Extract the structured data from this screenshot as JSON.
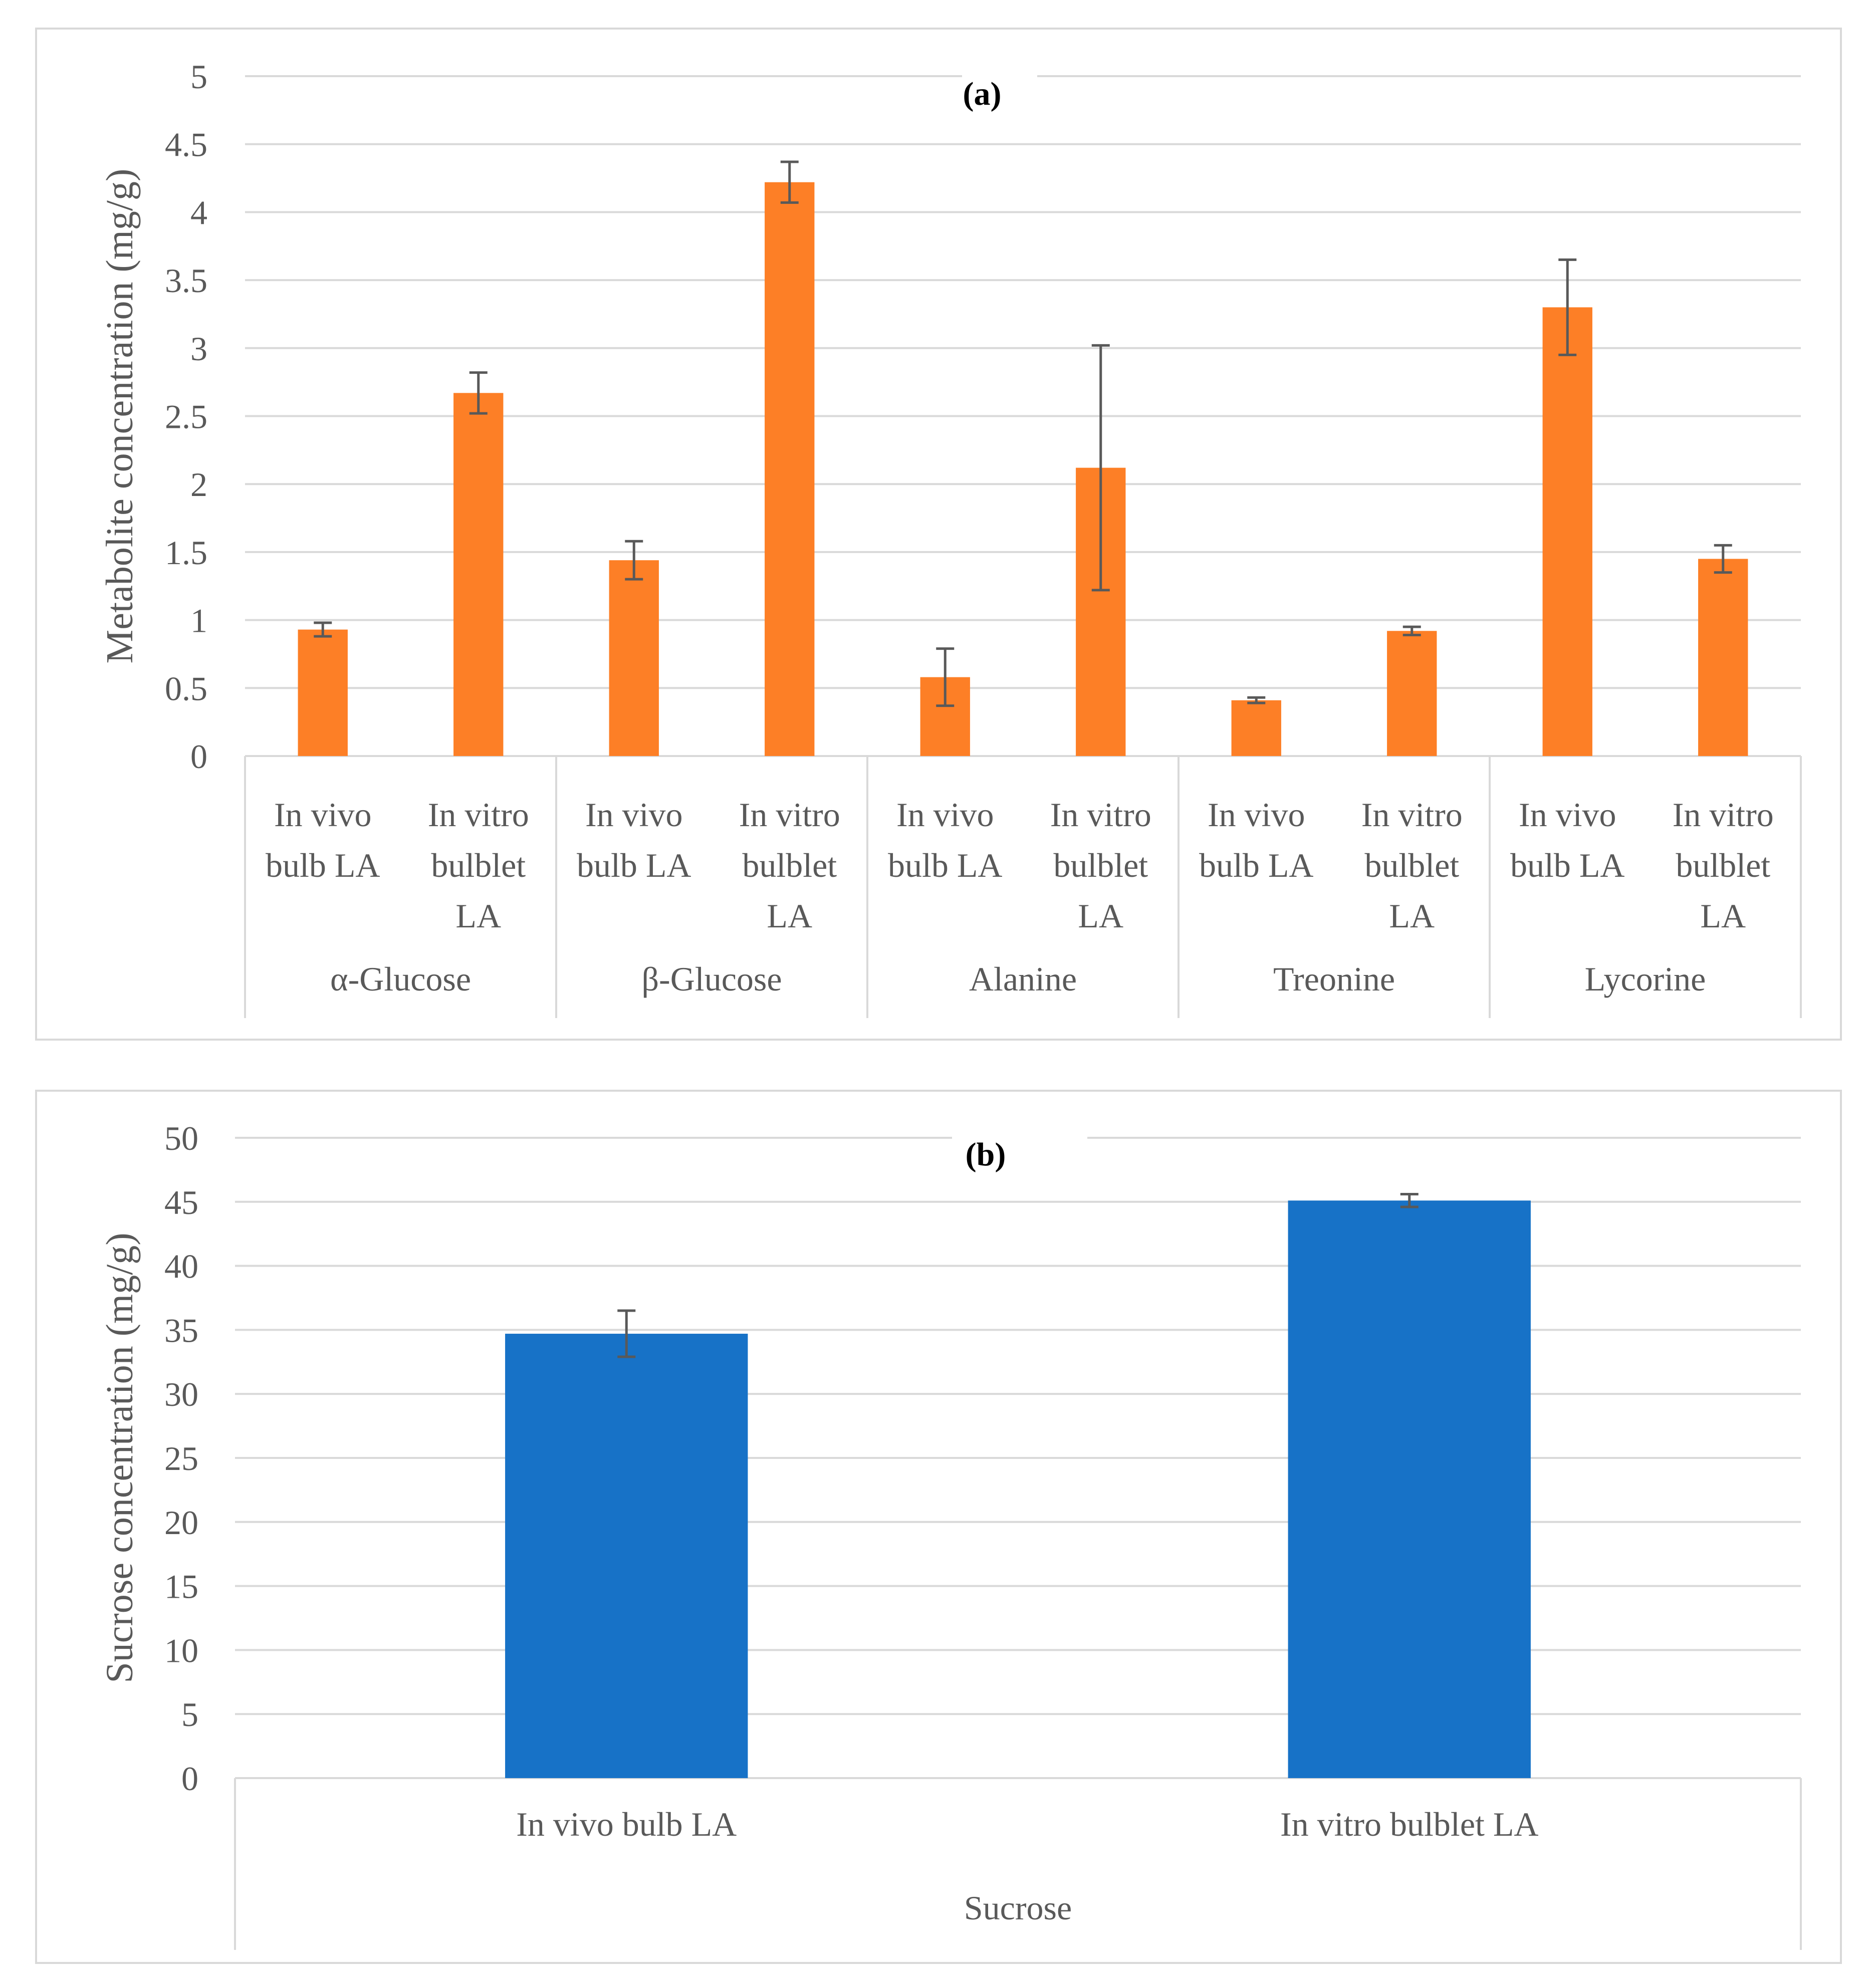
{
  "colors": {
    "a_bar": "#fd7f26",
    "b_bar": "#1772c7",
    "grid": "#d9d9d9",
    "error": "#595959",
    "text": "#595959"
  },
  "chart_data": [
    {
      "type": "bar",
      "title": "(a)",
      "ylabel": "Metabolite concentration (mg/g)",
      "xlabel": "",
      "ylim": [
        0,
        5
      ],
      "yticks": [
        "0",
        "0.5",
        "1",
        "1.5",
        "2",
        "2.5",
        "3",
        "3.5",
        "4",
        "4.5",
        "5"
      ],
      "groups": [
        {
          "name": "α-Glucose",
          "bars": [
            {
              "label": "In vivo bulb LA",
              "lines": [
                "In vivo",
                "bulb LA"
              ],
              "value": 0.93,
              "error": 0.05
            },
            {
              "label": "In vitro bulblet LA",
              "lines": [
                "In vitro",
                "bulblet",
                "LA"
              ],
              "value": 2.67,
              "error": 0.15
            }
          ]
        },
        {
          "name": "β-Glucose",
          "bars": [
            {
              "label": "In vivo bulb LA",
              "lines": [
                "In vivo",
                "bulb LA"
              ],
              "value": 1.44,
              "error": 0.14
            },
            {
              "label": "In vitro bulblet LA",
              "lines": [
                "In vitro",
                "bulblet",
                "LA"
              ],
              "value": 4.22,
              "error": 0.15
            }
          ]
        },
        {
          "name": "Alanine",
          "bars": [
            {
              "label": "In vivo bulb LA",
              "lines": [
                "In vivo",
                "bulb LA"
              ],
              "value": 0.58,
              "error": 0.21
            },
            {
              "label": "In vitro bulblet LA",
              "lines": [
                "In vitro",
                "bulblet",
                "LA"
              ],
              "value": 2.12,
              "error": 0.9
            }
          ]
        },
        {
          "name": "Treonine",
          "bars": [
            {
              "label": "In vivo bulb LA",
              "lines": [
                "In vivo",
                "bulb LA"
              ],
              "value": 0.41,
              "error": 0.02
            },
            {
              "label": "In vitro bulblet LA",
              "lines": [
                "In vitro",
                "bulblet",
                "LA"
              ],
              "value": 0.92,
              "error": 0.03
            }
          ]
        },
        {
          "name": "Lycorine",
          "bars": [
            {
              "label": "In vivo bulb LA",
              "lines": [
                "In vivo",
                "bulb LA"
              ],
              "value": 3.3,
              "error": 0.35
            },
            {
              "label": "In vitro bulblet LA",
              "lines": [
                "In vitro",
                "bulblet",
                "LA"
              ],
              "value": 1.45,
              "error": 0.1
            }
          ]
        }
      ]
    },
    {
      "type": "bar",
      "title": "(b)",
      "ylabel": "Sucrose concentration (mg/g)",
      "xlabel": "",
      "ylim": [
        0,
        50
      ],
      "yticks": [
        "0",
        "5",
        "10",
        "15",
        "20",
        "25",
        "30",
        "35",
        "40",
        "45",
        "50"
      ],
      "groups": [
        {
          "name": "Sucrose",
          "bars": [
            {
              "label": "In vivo bulb LA",
              "lines": [
                "In vivo bulb LA"
              ],
              "value": 34.7,
              "error": 1.8
            },
            {
              "label": "In vitro bulblet LA",
              "lines": [
                "In vitro bulblet LA"
              ],
              "value": 45.1,
              "error": 0.5
            }
          ]
        }
      ]
    }
  ]
}
